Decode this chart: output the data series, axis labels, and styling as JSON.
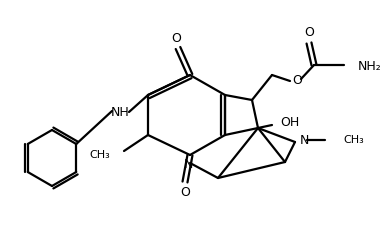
{
  "bg": "#ffffff",
  "lc": "#000000",
  "lw": 1.6,
  "fs": 9.0,
  "figsize": [
    3.89,
    2.42
  ],
  "dpi": 100,
  "xlim": [
    0,
    389
  ],
  "ylim": [
    0,
    242
  ]
}
